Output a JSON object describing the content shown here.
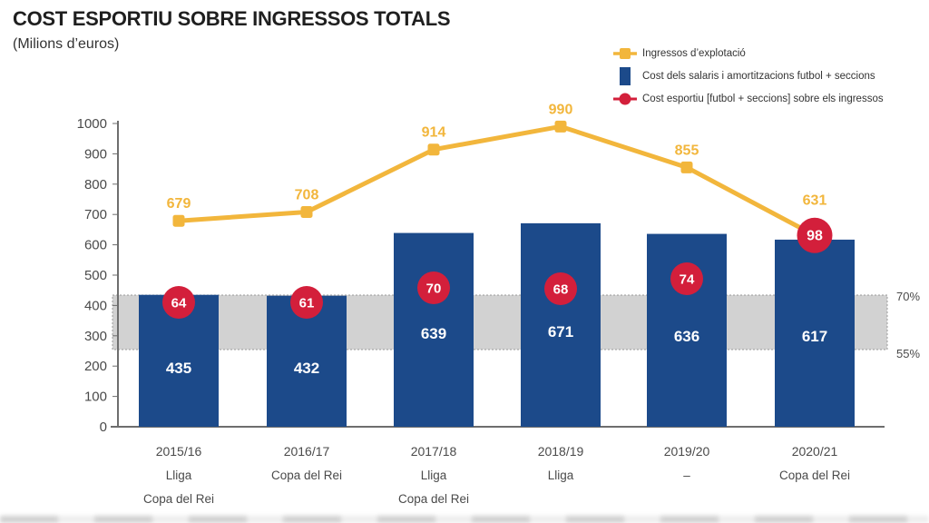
{
  "header": {
    "title": "COST ESPORTIU SOBRE INGRESSOS TOTALS",
    "subtitle": "(Milions d’euros)"
  },
  "legend": {
    "items": [
      {
        "label": "Ingressos d’explotació",
        "color": "#f2b63c",
        "marker": "line-square"
      },
      {
        "label": "Cost dels salaris i amortitzacions futbol + seccions",
        "color": "#1c4a8a",
        "marker": "bar-swatch"
      },
      {
        "label": "Cost esportiu [futbol + seccions] sobre els ingressos",
        "color": "#d31f3b",
        "marker": "line-circle"
      }
    ]
  },
  "chart_data": {
    "type": "bar",
    "title": "COST ESPORTIU SOBRE INGRESSOS TOTALS",
    "subtitle": "(Milions d’euros)",
    "categories": [
      "2015/16",
      "2016/17",
      "2017/18",
      "2018/19",
      "2019/20",
      "2020/21"
    ],
    "category_sublabels": [
      [
        "Lliga",
        "Copa del Rei"
      ],
      [
        "Copa del Rei"
      ],
      [
        "Lliga",
        "Copa del Rei"
      ],
      [
        "Lliga"
      ],
      [
        "–"
      ],
      [
        "Copa del Rei"
      ]
    ],
    "series": [
      {
        "name": "Ingressos d’explotació",
        "type": "line",
        "color": "#f2b63c",
        "values": [
          679,
          708,
          914,
          990,
          855,
          631
        ]
      },
      {
        "name": "Cost dels salaris i amortitzacions futbol + seccions",
        "type": "bar",
        "color": "#1c4a8a",
        "values": [
          435,
          432,
          639,
          671,
          636,
          617
        ]
      },
      {
        "name": "Cost esportiu [futbol + seccions] sobre els ingressos",
        "type": "point",
        "unit": "%",
        "color": "#d31f3b",
        "values": [
          64,
          61,
          70,
          68,
          74,
          98
        ]
      }
    ],
    "yaxis": {
      "min": 0,
      "max": 1000,
      "step": 100
    },
    "band": {
      "top_label": "70%",
      "bottom_label": "55%",
      "range_pct": [
        55,
        70
      ],
      "color": "#d2d2d2"
    },
    "legend_position": "top-right",
    "grid": false
  }
}
